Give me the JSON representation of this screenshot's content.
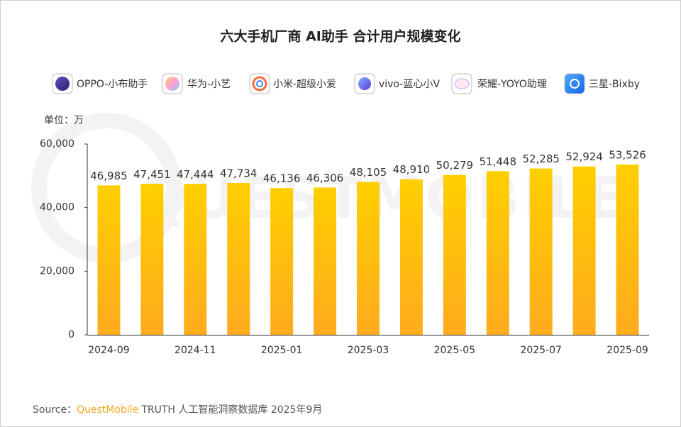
{
  "chart_data": {
    "type": "bar",
    "title": "六大手机厂商 AI助手 合计用户规模变化",
    "legend_items": [
      "OPPO-小布助手",
      "华为-小艺",
      "小米-超级小爱",
      "vivo-蓝心小V",
      "荣耀-YOYO助理",
      "三星-Bixby"
    ],
    "y_axis_label": "单位：万",
    "watermark": "QUESTMOBILE",
    "categories": [
      "2024-09",
      null,
      "2024-11",
      null,
      "2025-01",
      null,
      "2025-03",
      null,
      "2025-05",
      null,
      "2025-07",
      null,
      "2025-09"
    ],
    "values": [
      46985,
      47451,
      47444,
      47734,
      46136,
      46306,
      48105,
      48910,
      50279,
      51448,
      52285,
      52924,
      53526
    ],
    "value_labels": [
      "46,985",
      "47,451",
      "47,444",
      "47,734",
      "46,136",
      "46,306",
      "48,105",
      "48,910",
      "50,279",
      "51,448",
      "52,285",
      "52,924",
      "53,526"
    ],
    "color": "#ffc000",
    "ylim": [
      0,
      60000
    ],
    "yticks": [
      0,
      {
        "value": 20000,
        "label": "20,000"
      },
      {
        "value": 40000,
        "label": "40,000"
      },
      {
        "value": 60000,
        "label": "60,000"
      }
    ],
    "grid": false,
    "source": {
      "prefix": "Source：",
      "brand": "QuestMobile",
      "text": "TRUTH 人工智能洞察数据库 2025年9月"
    }
  }
}
